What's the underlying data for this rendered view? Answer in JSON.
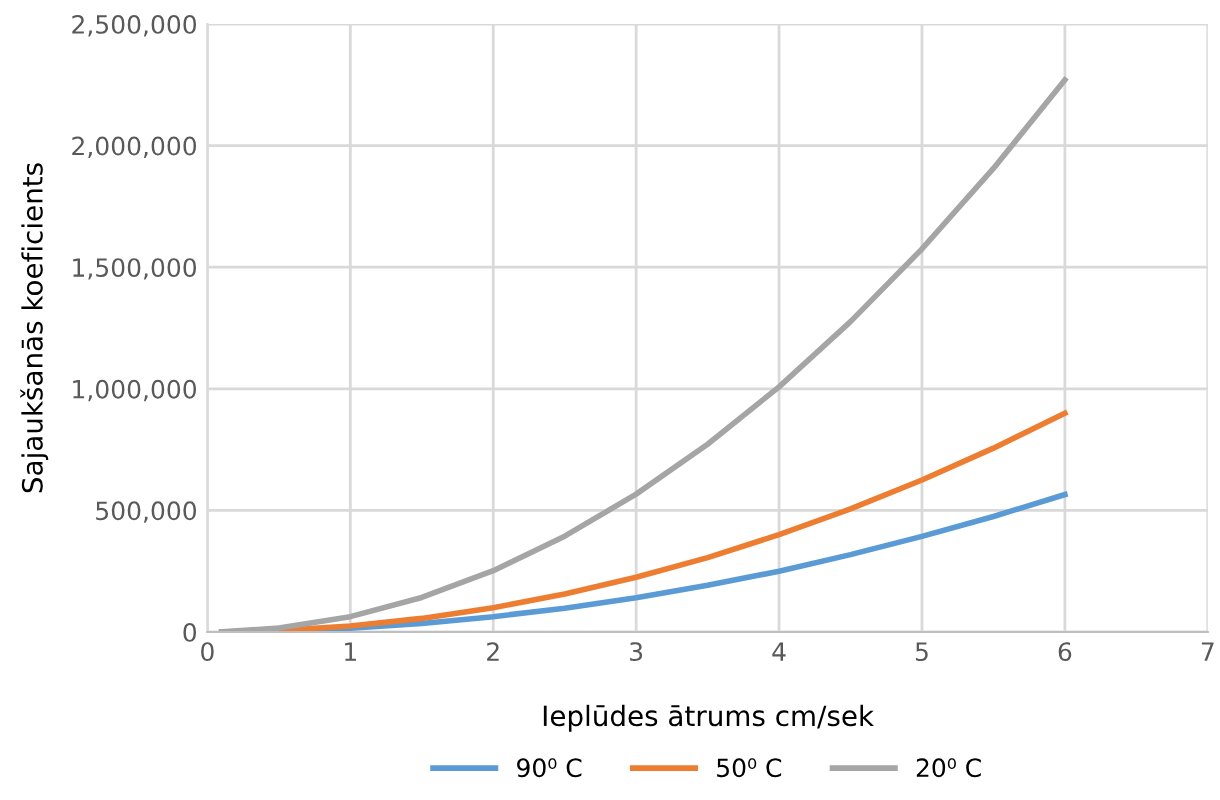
{
  "chart_data": {
    "type": "line",
    "xlabel": "Ieplūdes ātrums cm/sek",
    "ylabel": "Sajaukšanās koeficients",
    "x": [
      0.1,
      0.5,
      1,
      1.5,
      2,
      2.5,
      3,
      3.5,
      4,
      4.5,
      5,
      5.5,
      6
    ],
    "series": [
      {
        "name": "90⁰ C",
        "color": "#5b9bd5",
        "values": [
          200,
          4000,
          16000,
          35000,
          63000,
          98000,
          141000,
          192000,
          250000,
          318000,
          393000,
          475000,
          565000
        ]
      },
      {
        "name": "50⁰ C",
        "color": "#ed7d31",
        "values": [
          250,
          6000,
          25000,
          56000,
          100000,
          156000,
          225000,
          306000,
          400000,
          506000,
          625000,
          756000,
          900000
        ]
      },
      {
        "name": "20⁰ C",
        "color": "#a5a5a5",
        "values": [
          600,
          16000,
          63000,
          142000,
          252000,
          394000,
          567000,
          772000,
          1008000,
          1276000,
          1575000,
          1906000,
          2270000
        ]
      }
    ],
    "xlim": [
      0,
      7
    ],
    "xticks": [
      0,
      1,
      2,
      3,
      4,
      5,
      6,
      7
    ],
    "ylim": [
      0,
      2500000
    ],
    "yticks": [
      {
        "value": 0,
        "label": "0"
      },
      {
        "value": 500000,
        "label": "500,000"
      },
      {
        "value": 1000000,
        "label": "1,000,000"
      },
      {
        "value": 1500000,
        "label": "1,500,000"
      },
      {
        "value": 2000000,
        "label": "2,000,000"
      },
      {
        "value": 2500000,
        "label": "2,500,000"
      }
    ],
    "grid": true,
    "legend": "bottom",
    "marker": "none",
    "line_style": "solid"
  }
}
